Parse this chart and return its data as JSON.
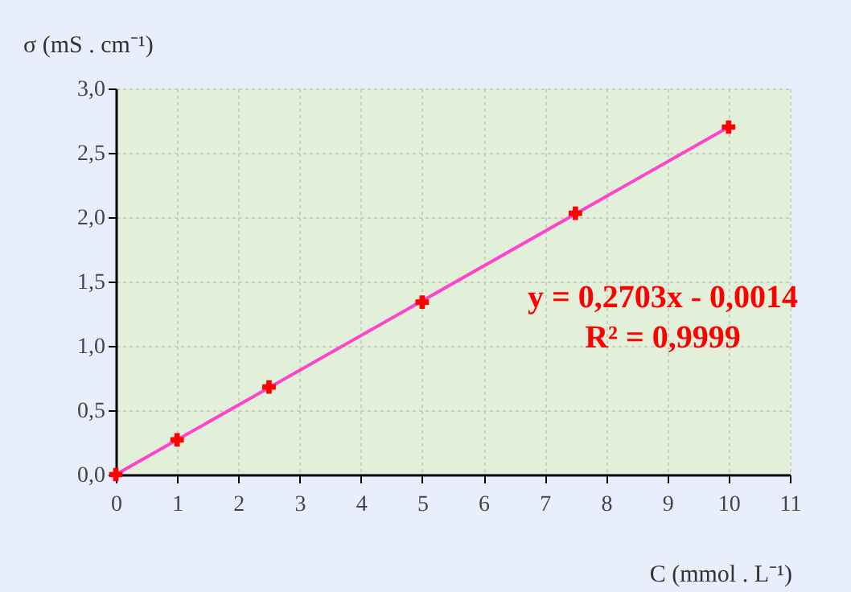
{
  "chart_data": {
    "type": "scatter",
    "xlabel": "C (mmol . L⁻¹)",
    "ylabel": "σ (mS . cm⁻¹)",
    "xlim": [
      0,
      11
    ],
    "xticks": [
      0,
      1,
      2,
      3,
      4,
      5,
      6,
      7,
      8,
      9,
      10,
      11
    ],
    "ylim": [
      0,
      3
    ],
    "yticks": [
      {
        "value": 0,
        "label": "0,0"
      },
      {
        "value": 0.5,
        "label": "0,5"
      },
      {
        "value": 1,
        "label": "1,0"
      },
      {
        "value": 1.5,
        "label": "1,5"
      },
      {
        "value": 2,
        "label": "2,0"
      },
      {
        "value": 2.5,
        "label": "2,5"
      },
      {
        "value": 3,
        "label": "3,0"
      }
    ],
    "grid": true,
    "series": [
      {
        "type": "line",
        "color": "#ff44cc",
        "x": [
          0,
          10
        ],
        "values": [
          0,
          2.7
        ]
      },
      {
        "color": "#ff0000",
        "marker": "cross",
        "x": [
          0,
          1,
          2.5,
          5,
          7.5,
          10
        ],
        "values": [
          0,
          0.27,
          0.68,
          1.34,
          2.03,
          2.7
        ]
      }
    ],
    "annotations": [
      "y = 0,2703x - 0,0014",
      "R² = 0,9999"
    ]
  }
}
